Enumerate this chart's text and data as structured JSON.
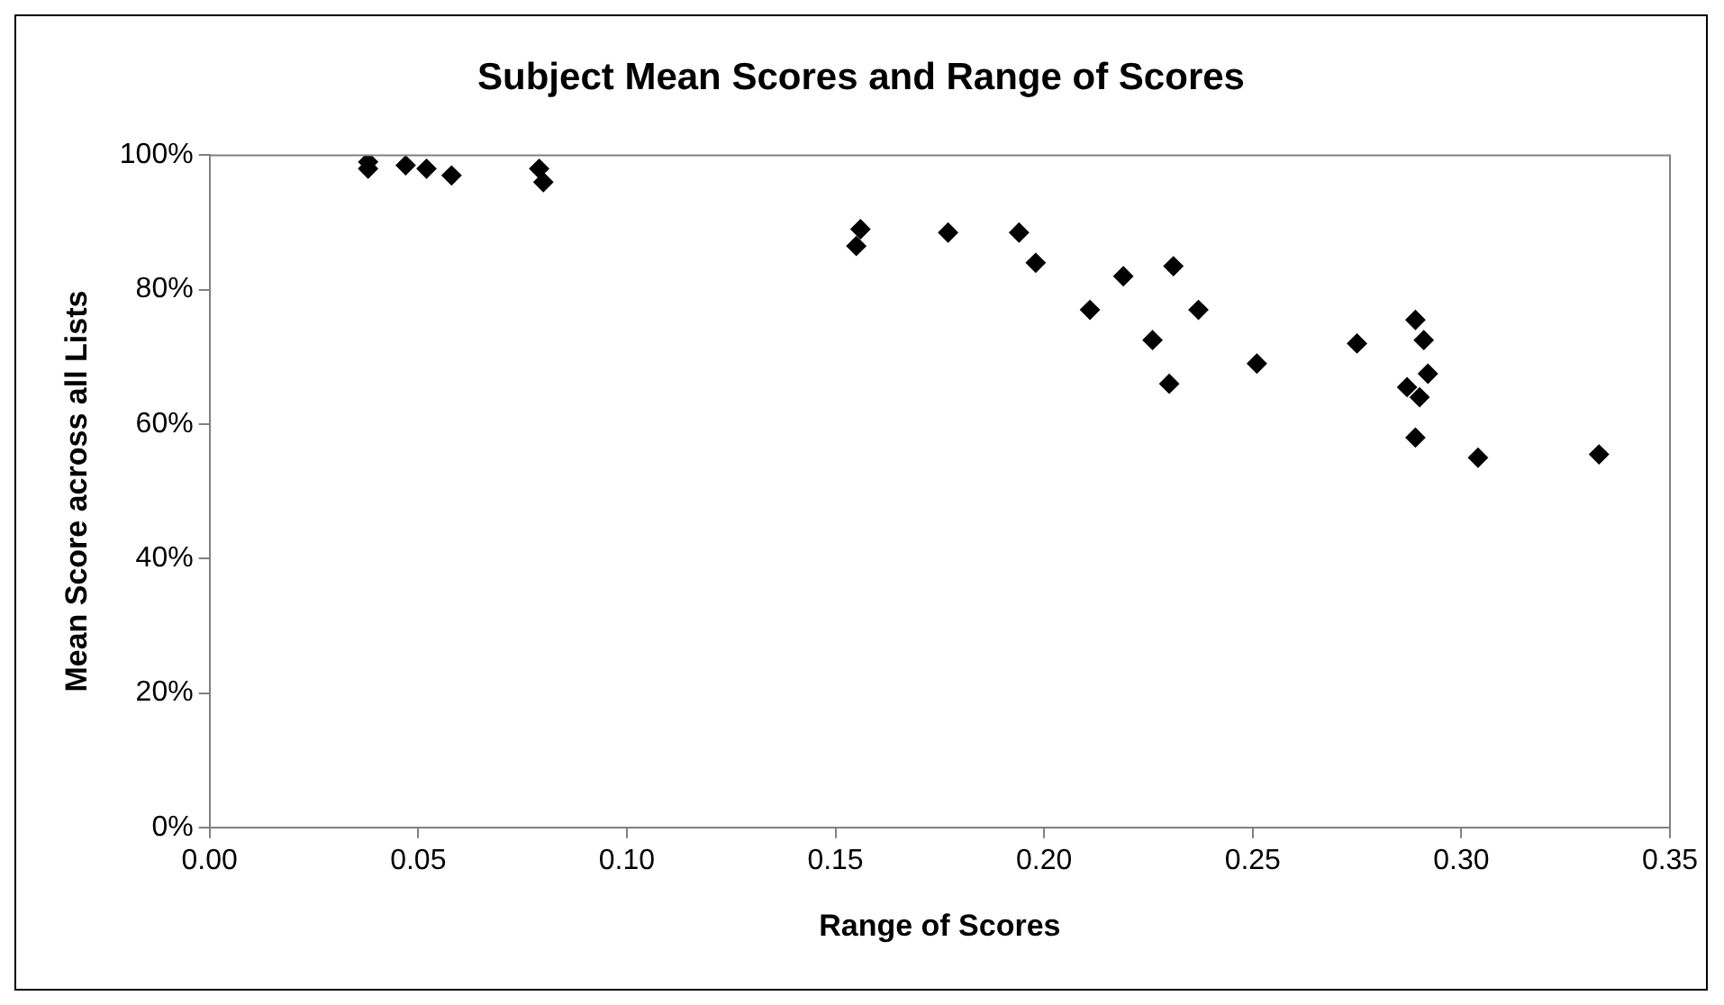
{
  "chart_data": {
    "type": "scatter",
    "title": "Subject Mean Scores and Range of Scores",
    "xlabel": "Range of Scores",
    "ylabel": "Mean Score across all Lists",
    "x": [
      0.038,
      0.038,
      0.047,
      0.052,
      0.058,
      0.079,
      0.08,
      0.156,
      0.155,
      0.177,
      0.194,
      0.198,
      0.219,
      0.231,
      0.211,
      0.237,
      0.226,
      0.23,
      0.251,
      0.275,
      0.289,
      0.291,
      0.292,
      0.287,
      0.29,
      0.289,
      0.304,
      0.333
    ],
    "values": [
      99,
      98,
      98.5,
      98,
      97,
      98,
      96,
      89,
      86.5,
      88.5,
      88.5,
      84,
      82,
      83.5,
      77,
      77,
      72.5,
      66,
      69,
      72,
      75.5,
      72.5,
      67.5,
      65.5,
      64,
      58,
      55,
      55.5
    ],
    "color": "#000000",
    "marker": "diamond",
    "grid": false,
    "legend": false,
    "xlim": [
      0,
      0.35
    ],
    "xticks": [
      {
        "value": 0,
        "label": "0.00"
      },
      {
        "value": 0.05,
        "label": "0.05"
      },
      {
        "value": 0.1,
        "label": "0.10"
      },
      {
        "value": 0.15,
        "label": "0.15"
      },
      {
        "value": 0.2,
        "label": "0.20"
      },
      {
        "value": 0.25,
        "label": "0.25"
      },
      {
        "value": 0.3,
        "label": "0.30"
      },
      {
        "value": 0.35,
        "label": "0.35"
      }
    ],
    "ylim": [
      0,
      100
    ],
    "yticks": [
      {
        "value": 0,
        "label": "0%"
      },
      {
        "value": 20,
        "label": "20%"
      },
      {
        "value": 40,
        "label": "40%"
      },
      {
        "value": 60,
        "label": "60%"
      },
      {
        "value": 80,
        "label": "80%"
      },
      {
        "value": 100,
        "label": "100%"
      }
    ]
  }
}
